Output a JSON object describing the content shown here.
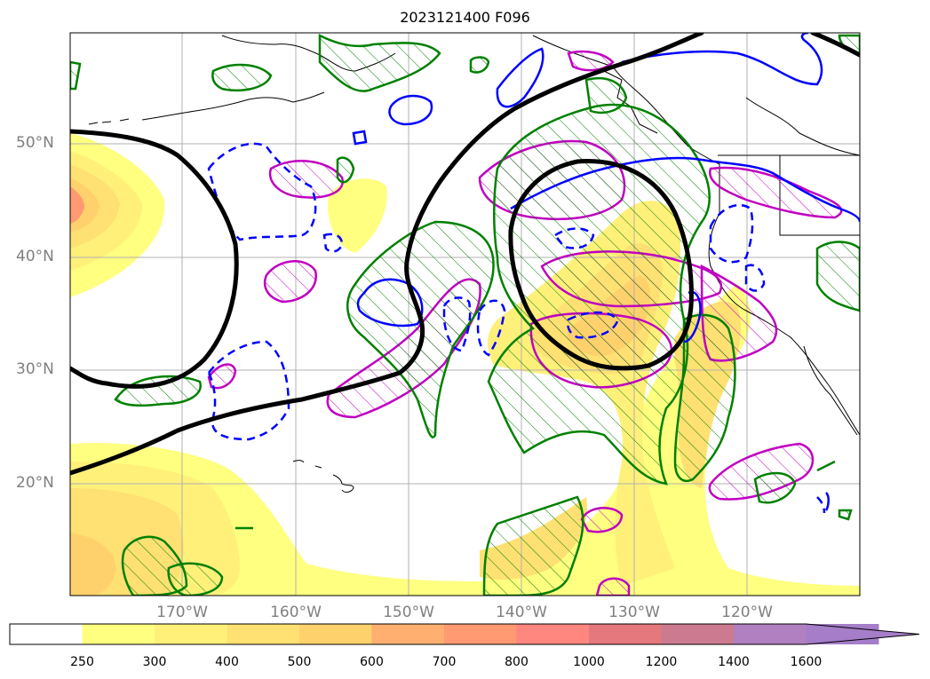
{
  "title": "2023121400 F096",
  "latitude_labels": [
    "50°N",
    "40°N",
    "30°N",
    "20°N"
  ],
  "longitude_labels": [
    "170°W",
    "160°W",
    "150°W",
    "140°W",
    "130°W",
    "120°W"
  ],
  "colorbar": {
    "ticks": [
      "250",
      "300",
      "400",
      "500",
      "600",
      "700",
      "800",
      "1000",
      "1200",
      "1400",
      "1600"
    ],
    "colors": [
      "#ffffff",
      "#ffff80",
      "#fff07a",
      "#ffe072",
      "#ffd16c",
      "#ffb070",
      "#ff9a72",
      "#ff8780",
      "#e5787c",
      "#cc7a90",
      "#b080c0",
      "#a57dc8"
    ],
    "extend": "max"
  },
  "line_colors": {
    "contour_black": "#000000",
    "contour_blue": "#0000ff",
    "contour_green": "#008000",
    "contour_magenta": "#c000c0",
    "coastline": "#000000"
  }
}
